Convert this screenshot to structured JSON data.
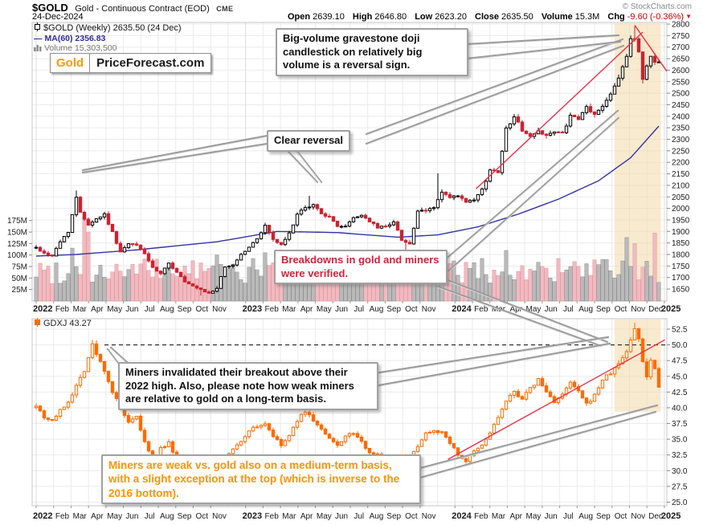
{
  "header": {
    "symbol": "$GOLD",
    "description": "Gold - Continuous Contract (EOD)",
    "exchange": "CME",
    "date": "24-Dec-2024",
    "copyright": "© StockCharts.com",
    "quote": {
      "open_label": "Open",
      "open": "2639.10",
      "high_label": "High",
      "high": "2646.80",
      "low_label": "Low",
      "low": "2623.20",
      "close_label": "Close",
      "close": "2635.50",
      "volume_label": "Volume",
      "volume": "15.3M",
      "chg_label": "Chg",
      "chg": "-9.60 (-0.36%)",
      "chg_arrow": "▼"
    }
  },
  "panel1": {
    "legend_symbol": "$GOLD (Weekly) 2635.50 (24 Dec)",
    "legend_ma": "MA(60) 2356.83",
    "legend_volume": "Volume 15,303,500"
  },
  "panel2": {
    "legend_symbol": "GDXJ 43.27"
  },
  "logo": {
    "gold": "Gold",
    "rest": "PriceForecast.com"
  },
  "annotations": {
    "big_volume": "Big-volume gravestone doji candlestick on relatively big volume is a reversal sign.",
    "clear_reversal": "Clear reversal",
    "breakdowns": "Breakdowns in gold and miners were verified.",
    "miners_invalidated": "Miners invalidated their breakout above their 2022 high. Also, please note how weak miners are relative to gold on a long-term basis.",
    "miners_weak": "Miners are weak vs. gold also on a medium-term basis, with a slight exception at the top (which is inverse to the 2016 bottom)."
  },
  "colors": {
    "up_candle": "#000000",
    "down_candle": "#cc2231",
    "ma": "#3434a4",
    "gdxj": "#ff6a00",
    "volume_up": "#bababa",
    "volume_up_edge": "#8e8e8e",
    "volume_down": "#f2bac0",
    "volume_down_edge": "#dd9aa2",
    "highlight": "#f2d9a8",
    "trendline": "#ef2f49",
    "dashed": "#333333",
    "grid": "#ebebeb",
    "grid_year": "#dcdcdc",
    "annotation_red": "#cf2438",
    "annotation_orange": "#ff9300"
  },
  "x_axis_labels": [
    [
      "2022",
      0,
      1
    ],
    [
      "Feb",
      1,
      0
    ],
    [
      "Mar",
      2,
      0
    ],
    [
      "Apr",
      3,
      0
    ],
    [
      "May",
      4,
      0
    ],
    [
      "Jun",
      5,
      0
    ],
    [
      "Jul",
      6,
      0
    ],
    [
      "Aug",
      7,
      0
    ],
    [
      "Sep",
      8,
      0
    ],
    [
      "Oct",
      9,
      0
    ],
    [
      "Nov",
      10,
      0
    ],
    [
      "2023",
      12,
      1
    ],
    [
      "Feb",
      13,
      0
    ],
    [
      "Mar",
      14,
      0
    ],
    [
      "Apr",
      15,
      0
    ],
    [
      "May",
      16,
      0
    ],
    [
      "Jun",
      17,
      0
    ],
    [
      "Jul",
      18,
      0
    ],
    [
      "Aug",
      19,
      0
    ],
    [
      "Sep",
      20,
      0
    ],
    [
      "Oct",
      21,
      0
    ],
    [
      "Nov",
      22,
      0
    ],
    [
      "2024",
      24,
      1
    ],
    [
      "Feb",
      25,
      0
    ],
    [
      "Mar",
      26,
      0
    ],
    [
      "Apr",
      27,
      0
    ],
    [
      "May",
      28,
      0
    ],
    [
      "Jun",
      29,
      0
    ],
    [
      "Jul",
      30,
      0
    ],
    [
      "Aug",
      31,
      0
    ],
    [
      "Sep",
      32,
      0
    ],
    [
      "Oct",
      33,
      0
    ],
    [
      "Nov",
      34,
      0
    ],
    [
      "Dec",
      35,
      0
    ],
    [
      "2025",
      36,
      1
    ]
  ],
  "chart_data": [
    {
      "type": "candlestick",
      "title": "$GOLD (Weekly) — Gold Continuous Contract (EOD)",
      "timeframe": "weekly",
      "x_range": [
        "Jan 2022",
        "Dec 2024"
      ],
      "ylim": [
        1598,
        2810
      ],
      "y_ticks": [
        1650,
        1700,
        1750,
        1800,
        1850,
        1900,
        1950,
        2000,
        2050,
        2100,
        2150,
        2200,
        2250,
        2300,
        2350,
        2400,
        2450,
        2500,
        2550,
        2600,
        2650,
        2700,
        2750,
        2800
      ],
      "last_close": 2635.5,
      "ma60_last": 2356.83,
      "close_keypoints": [
        [
          0,
          1830
        ],
        [
          2,
          1805
        ],
        [
          4,
          1795
        ],
        [
          6,
          1855
        ],
        [
          8,
          1900
        ],
        [
          10,
          2045
        ],
        [
          11,
          1985
        ],
        [
          13,
          1930
        ],
        [
          15,
          1955
        ],
        [
          17,
          1975
        ],
        [
          19,
          1895
        ],
        [
          21,
          1810
        ],
        [
          23,
          1845
        ],
        [
          25,
          1840
        ],
        [
          27,
          1805
        ],
        [
          29,
          1740
        ],
        [
          31,
          1715
        ],
        [
          33,
          1760
        ],
        [
          35,
          1725
        ],
        [
          37,
          1680
        ],
        [
          39,
          1660
        ],
        [
          41,
          1645
        ],
        [
          43,
          1630
        ],
        [
          45,
          1655
        ],
        [
          47,
          1745
        ],
        [
          49,
          1755
        ],
        [
          51,
          1800
        ],
        [
          53,
          1830
        ],
        [
          55,
          1870
        ],
        [
          57,
          1925
        ],
        [
          59,
          1865
        ],
        [
          61,
          1840
        ],
        [
          63,
          1890
        ],
        [
          65,
          1975
        ],
        [
          67,
          2000
        ],
        [
          69,
          2015
        ],
        [
          71,
          1980
        ],
        [
          73,
          1960
        ],
        [
          75,
          1925
        ],
        [
          77,
          1920
        ],
        [
          79,
          1960
        ],
        [
          81,
          1970
        ],
        [
          83,
          1945
        ],
        [
          85,
          1915
        ],
        [
          87,
          1925
        ],
        [
          89,
          1940
        ],
        [
          91,
          1865
        ],
        [
          93,
          1845
        ],
        [
          95,
          1985
        ],
        [
          97,
          1990
        ],
        [
          99,
          2005
        ],
        [
          101,
          2070
        ],
        [
          103,
          2045
        ],
        [
          105,
          2055
        ],
        [
          107,
          2025
        ],
        [
          109,
          2035
        ],
        [
          111,
          2080
        ],
        [
          113,
          2165
        ],
        [
          115,
          2160
        ],
        [
          117,
          2345
        ],
        [
          119,
          2400
        ],
        [
          121,
          2340
        ],
        [
          123,
          2310
        ],
        [
          125,
          2335
        ],
        [
          127,
          2320
        ],
        [
          129,
          2330
        ],
        [
          131,
          2325
        ],
        [
          133,
          2400
        ],
        [
          135,
          2385
        ],
        [
          137,
          2440
        ],
        [
          139,
          2405
        ],
        [
          141,
          2445
        ],
        [
          143,
          2500
        ],
        [
          145,
          2570
        ],
        [
          147,
          2660
        ],
        [
          148,
          2730
        ],
        [
          149,
          2740
        ],
        [
          150,
          2680
        ],
        [
          151,
          2560
        ],
        [
          152,
          2620
        ],
        [
          153,
          2660
        ],
        [
          154,
          2640
        ],
        [
          155,
          2635.5
        ]
      ],
      "high_overrides": {
        "10": 2078,
        "68": 2055,
        "100": 2152,
        "149": 2790
      },
      "low_overrides": {
        "41": 1622,
        "92": 1820,
        "151": 2542
      },
      "ma60_keypoints": [
        [
          0,
          1793
        ],
        [
          10,
          1800
        ],
        [
          25,
          1820
        ],
        [
          45,
          1855
        ],
        [
          60,
          1900
        ],
        [
          75,
          1895
        ],
        [
          90,
          1875
        ],
        [
          100,
          1885
        ],
        [
          110,
          1920
        ],
        [
          120,
          1975
        ],
        [
          130,
          2040
        ],
        [
          140,
          2120
        ],
        [
          148,
          2220
        ],
        [
          155,
          2357
        ]
      ],
      "volume_ticks_M": [
        25,
        50,
        75,
        100,
        125,
        150,
        175
      ],
      "volume_spikes_M": {
        "9": 115,
        "12": 183,
        "13": 150,
        "45": 100,
        "57": 105,
        "100": 98,
        "117": 110,
        "147": 138,
        "149": 125,
        "154": 148
      },
      "highlight_region_weeks": [
        144,
        155.5
      ],
      "trendlines": [
        {
          "from": [
            109.5,
            2085
          ],
          "to": [
            151,
            2765
          ]
        },
        {
          "from": [
            149,
            2795
          ],
          "to": [
            157,
            2595
          ]
        }
      ]
    },
    {
      "type": "candlestick",
      "title": "GDXJ (Weekly)",
      "timeframe": "weekly",
      "x_range": [
        "Jan 2022",
        "Dec 2024"
      ],
      "ylim": [
        24,
        54.5
      ],
      "y_ticks": [
        25.0,
        27.5,
        30.0,
        32.5,
        35.0,
        37.5,
        40.0,
        42.5,
        45.0,
        47.5,
        50.0,
        52.5
      ],
      "last_close": 43.27,
      "close_keypoints": [
        [
          0,
          40.5
        ],
        [
          2,
          38.5
        ],
        [
          4,
          38
        ],
        [
          6,
          39.5
        ],
        [
          8,
          41
        ],
        [
          10,
          43.5
        ],
        [
          12,
          46
        ],
        [
          14,
          50
        ],
        [
          15,
          48.5
        ],
        [
          17,
          46
        ],
        [
          19,
          42.5
        ],
        [
          21,
          40
        ],
        [
          23,
          37.5
        ],
        [
          25,
          38.5
        ],
        [
          27,
          34.5
        ],
        [
          29,
          31.5
        ],
        [
          31,
          33.5
        ],
        [
          33,
          34.5
        ],
        [
          35,
          31
        ],
        [
          37,
          28
        ],
        [
          39,
          26.5
        ],
        [
          41,
          27.5
        ],
        [
          43,
          28.5
        ],
        [
          45,
          30
        ],
        [
          47,
          32
        ],
        [
          49,
          33.5
        ],
        [
          51,
          34.5
        ],
        [
          53,
          36.5
        ],
        [
          55,
          37
        ],
        [
          57,
          37.5
        ],
        [
          59,
          35.5
        ],
        [
          61,
          34
        ],
        [
          63,
          35.5
        ],
        [
          65,
          38
        ],
        [
          67,
          39.5
        ],
        [
          69,
          38
        ],
        [
          71,
          36.5
        ],
        [
          73,
          35
        ],
        [
          75,
          34
        ],
        [
          77,
          35.5
        ],
        [
          79,
          36
        ],
        [
          81,
          34.5
        ],
        [
          83,
          33
        ],
        [
          85,
          32.5
        ],
        [
          87,
          31.5
        ],
        [
          89,
          30.5
        ],
        [
          91,
          30
        ],
        [
          93,
          32
        ],
        [
          95,
          34
        ],
        [
          97,
          36
        ],
        [
          99,
          36.5
        ],
        [
          101,
          36
        ],
        [
          103,
          34.5
        ],
        [
          105,
          32.5
        ],
        [
          107,
          31.5
        ],
        [
          109,
          33
        ],
        [
          111,
          34
        ],
        [
          113,
          36
        ],
        [
          115,
          38.5
        ],
        [
          117,
          41
        ],
        [
          119,
          42.5
        ],
        [
          121,
          41.5
        ],
        [
          123,
          43
        ],
        [
          125,
          44.5
        ],
        [
          127,
          42.5
        ],
        [
          129,
          41
        ],
        [
          131,
          42
        ],
        [
          133,
          44
        ],
        [
          135,
          42.5
        ],
        [
          137,
          40.5
        ],
        [
          139,
          42
        ],
        [
          141,
          44.5
        ],
        [
          143,
          45.5
        ],
        [
          145,
          47
        ],
        [
          147,
          49
        ],
        [
          149,
          52.5
        ],
        [
          150,
          51
        ],
        [
          151,
          47.5
        ],
        [
          152,
          45
        ],
        [
          153,
          47.5
        ],
        [
          154,
          46.5
        ],
        [
          155,
          43.27
        ]
      ],
      "high_overrides": {
        "14": 50.8,
        "149": 53.5
      },
      "low_overrides": {
        "39": 25.8
      },
      "dashed_level": {
        "price": 50.0,
        "from_week": 17,
        "to_week": 157.5
      },
      "highlight_region_weeks": [
        144,
        155.5
      ],
      "trendlines": [
        {
          "from": [
            102.5,
            31.8
          ],
          "to": [
            156.5,
            50.8
          ]
        }
      ]
    }
  ]
}
